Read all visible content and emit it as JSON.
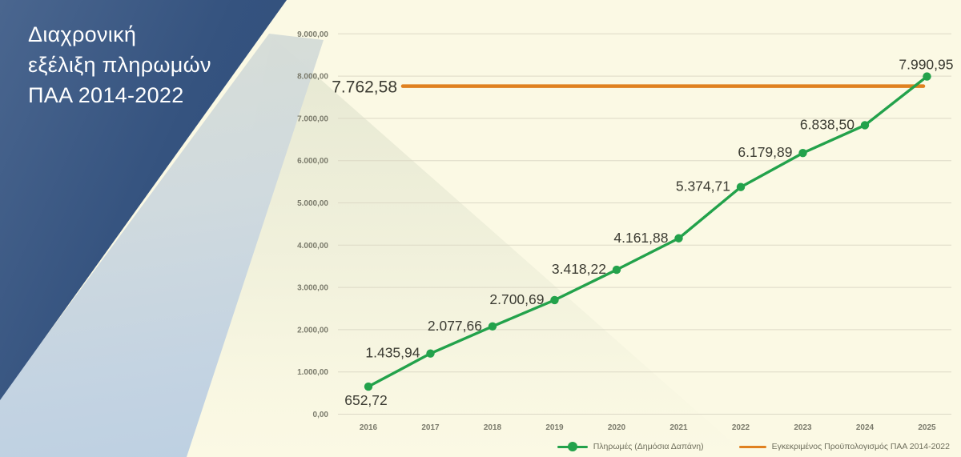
{
  "panel": {
    "title_lines": [
      "Διαχρονική",
      "εξέλιξη πληρωμών",
      "ΠΑΑ 2014-2022"
    ]
  },
  "chart_data": {
    "type": "line",
    "title": "Διαχρονική εξέλιξη πληρωμών ΠΑΑ 2014-2022",
    "categories": [
      "2016",
      "2017",
      "2018",
      "2019",
      "2020",
      "2021",
      "2022",
      "2023",
      "2024",
      "2025"
    ],
    "series": [
      {
        "name": "Πληρωμές (Δημόσια Δαπάνη)",
        "values": [
          652.72,
          1435.94,
          2077.66,
          2700.69,
          3418.22,
          4161.88,
          5374.71,
          6179.89,
          6838.5,
          7990.95
        ],
        "labels": [
          "652,72",
          "1.435,94",
          "2.077,66",
          "2.700,69",
          "3.418,22",
          "4.161,88",
          "5.374,71",
          "6.179,89",
          "6.838,50",
          "7.990,95"
        ],
        "color": "#23a24b"
      }
    ],
    "reference_line": {
      "name": "Εγκεκριμένος Προϋπολογισμός ΠΑΑ 2014-2022",
      "value": 7762.58,
      "label": "7.762,58",
      "color": "#e0811f"
    },
    "y_tick_values": [
      0,
      1000,
      2000,
      3000,
      4000,
      5000,
      6000,
      7000,
      8000,
      9000
    ],
    "y_tick_labels": [
      "0,00",
      "1.000,00",
      "2.000,00",
      "3.000,00",
      "4.000,00",
      "5.000,00",
      "6.000,00",
      "7.000,00",
      "8.000,00",
      "9.000,00"
    ],
    "ylim": [
      0,
      9000
    ],
    "grid": true,
    "legend_position": "bottom-right"
  },
  "colors": {
    "background": "#fbf9e4",
    "navy_panel": "#2b4a7a",
    "light_blue_wedge": "#b7cde2",
    "series_green": "#23a24b",
    "budget_orange": "#e0811f",
    "gridline": "#dcd9c6",
    "tick_text": "#7b7b6c",
    "data_label_text": "#3b3b32",
    "legend_text": "#6f6f5d"
  }
}
